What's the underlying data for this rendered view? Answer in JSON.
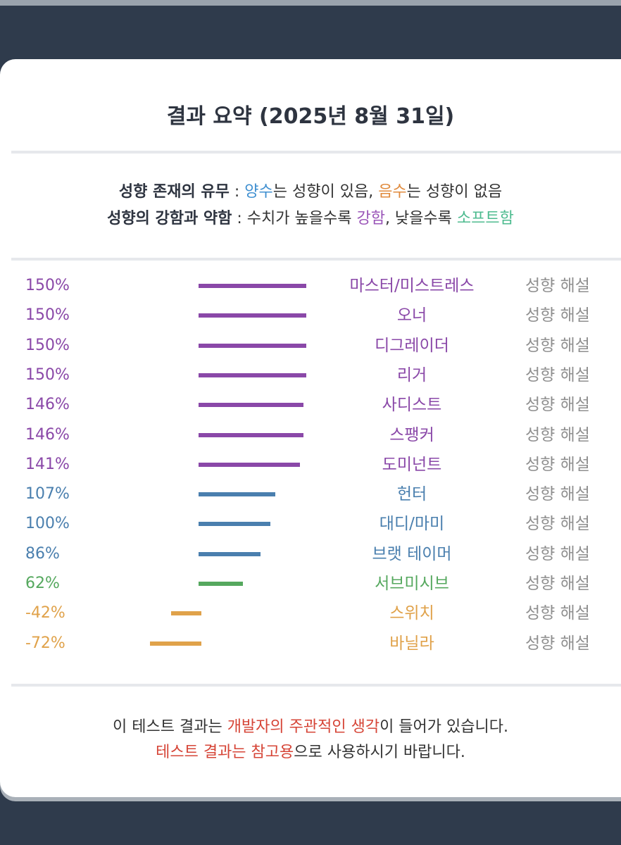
{
  "header": {
    "title": "결과 요약 (2025년 8월 31일)"
  },
  "legend": {
    "line1": {
      "label": "성향 존재의 유무",
      "sep": " : ",
      "positive_word": "양수",
      "positive_text": "는 성향이 있음, ",
      "negative_word": "음수",
      "negative_text": "는 성향이 없음"
    },
    "line2": {
      "label": "성향의 강함과 약함",
      "sep": " : ",
      "text_a": "수치가 높을수록 ",
      "strong_word": "강함",
      "text_b": ", 낮을수록 ",
      "soft_word": "소프트함"
    }
  },
  "colors": {
    "purple": "#8a48a8",
    "blue": "#4a7fae",
    "green": "#55a85e",
    "orange": "#e0a24a",
    "positive_word": "#3f8fd0",
    "negative_word": "#e08a3c",
    "strong_word": "#9a55b8",
    "soft_word": "#4dbb8f",
    "notice_red": "#d64537"
  },
  "chart_data": {
    "type": "bar",
    "orientation": "horizontal",
    "zero_axis_percent": 0,
    "x_range": [
      -100,
      150
    ],
    "categories": [
      "마스터/미스트레스",
      "오너",
      "디그레이더",
      "리거",
      "사디스트",
      "스팽커",
      "도미넌트",
      "헌터",
      "대디/마미",
      "브랫 테이머",
      "서브미시브",
      "스위치",
      "바닐라"
    ],
    "values": [
      150,
      150,
      150,
      150,
      146,
      146,
      141,
      107,
      100,
      86,
      62,
      -42,
      -72
    ],
    "labels": [
      "150%",
      "150%",
      "150%",
      "150%",
      "146%",
      "146%",
      "141%",
      "107%",
      "100%",
      "86%",
      "62%",
      "-42%",
      "-72%"
    ],
    "colors": [
      "purple",
      "purple",
      "purple",
      "purple",
      "purple",
      "purple",
      "purple",
      "blue",
      "blue",
      "blue",
      "green",
      "orange",
      "orange"
    ],
    "action_label": "성향 해설"
  },
  "notice": {
    "line1_a": "이 테스트 결과는 ",
    "line1_red": "개발자의 주관적인 생각",
    "line1_b": "이 들어가 있습니다.",
    "line2_red": "테스트 결과는 참고용",
    "line2_b": "으로 사용하시기 바랍니다."
  }
}
